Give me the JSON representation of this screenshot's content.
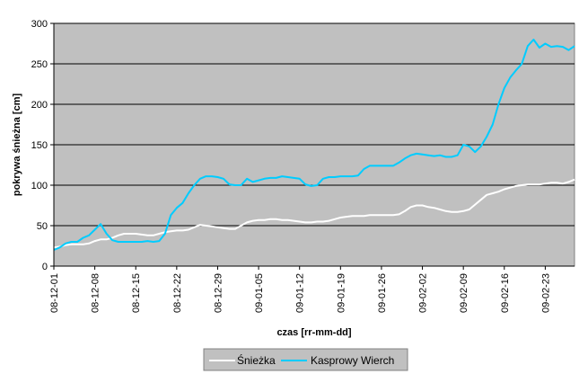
{
  "chart_data": {
    "type": "line",
    "title": "",
    "xlabel": "czas [rr-mm-dd]",
    "ylabel": "pokrywa śnieżna [cm]",
    "ylim": [
      0,
      300
    ],
    "yticks": [
      0,
      50,
      100,
      150,
      200,
      250,
      300
    ],
    "xlim": [
      "08-12-01",
      "09-02-28"
    ],
    "xtick_labels": [
      "08-12-01",
      "08-12-08",
      "08-12-15",
      "08-12-22",
      "08-12-29",
      "09-01-05",
      "09-01-12",
      "09-01-19",
      "09-01-26",
      "09-02-02",
      "09-02-09",
      "09-02-16",
      "09-02-23"
    ],
    "grid": "horizontal",
    "legend_position": "bottom",
    "plot_background": "#c0c0c0",
    "series": [
      {
        "name": "Śnieżka",
        "color": "#ffffff",
        "points": [
          [
            "08-12-01",
            23
          ],
          [
            "08-12-02",
            24
          ],
          [
            "08-12-03",
            26
          ],
          [
            "08-12-04",
            27
          ],
          [
            "08-12-05",
            27
          ],
          [
            "08-12-06",
            27
          ],
          [
            "08-12-07",
            28
          ],
          [
            "08-12-08",
            31
          ],
          [
            "08-12-09",
            33
          ],
          [
            "08-12-10",
            33
          ],
          [
            "08-12-11",
            35
          ],
          [
            "08-12-12",
            38
          ],
          [
            "08-12-13",
            40
          ],
          [
            "08-12-14",
            40
          ],
          [
            "08-12-15",
            40
          ],
          [
            "08-12-16",
            39
          ],
          [
            "08-12-17",
            38
          ],
          [
            "08-12-18",
            38
          ],
          [
            "08-12-19",
            40
          ],
          [
            "08-12-20",
            42
          ],
          [
            "08-12-21",
            43
          ],
          [
            "08-12-22",
            44
          ],
          [
            "08-12-23",
            44
          ],
          [
            "08-12-24",
            45
          ],
          [
            "08-12-25",
            48
          ],
          [
            "08-12-26",
            51
          ],
          [
            "08-12-27",
            50
          ],
          [
            "08-12-28",
            49
          ],
          [
            "08-12-29",
            48
          ],
          [
            "08-12-30",
            47
          ],
          [
            "08-12-31",
            46
          ],
          [
            "09-01-01",
            46
          ],
          [
            "09-01-02",
            50
          ],
          [
            "09-01-03",
            54
          ],
          [
            "09-01-04",
            56
          ],
          [
            "09-01-05",
            57
          ],
          [
            "09-01-06",
            57
          ],
          [
            "09-01-07",
            58
          ],
          [
            "09-01-08",
            58
          ],
          [
            "09-01-09",
            57
          ],
          [
            "09-01-10",
            57
          ],
          [
            "09-01-11",
            56
          ],
          [
            "09-01-12",
            55
          ],
          [
            "09-01-13",
            54
          ],
          [
            "09-01-14",
            54
          ],
          [
            "09-01-15",
            55
          ],
          [
            "09-01-16",
            55
          ],
          [
            "09-01-17",
            56
          ],
          [
            "09-01-18",
            58
          ],
          [
            "09-01-19",
            60
          ],
          [
            "09-01-20",
            61
          ],
          [
            "09-01-21",
            62
          ],
          [
            "09-01-22",
            62
          ],
          [
            "09-01-23",
            62
          ],
          [
            "09-01-24",
            63
          ],
          [
            "09-01-25",
            63
          ],
          [
            "09-01-26",
            63
          ],
          [
            "09-01-27",
            63
          ],
          [
            "09-01-28",
            63
          ],
          [
            "09-01-29",
            64
          ],
          [
            "09-01-30",
            68
          ],
          [
            "09-01-31",
            73
          ],
          [
            "09-02-01",
            75
          ],
          [
            "09-02-02",
            75
          ],
          [
            "09-02-03",
            73
          ],
          [
            "09-02-04",
            72
          ],
          [
            "09-02-05",
            70
          ],
          [
            "09-02-06",
            68
          ],
          [
            "09-02-07",
            67
          ],
          [
            "09-02-08",
            67
          ],
          [
            "09-02-09",
            68
          ],
          [
            "09-02-10",
            70
          ],
          [
            "09-02-11",
            76
          ],
          [
            "09-02-12",
            82
          ],
          [
            "09-02-13",
            88
          ],
          [
            "09-02-14",
            90
          ],
          [
            "09-02-15",
            92
          ],
          [
            "09-02-16",
            95
          ],
          [
            "09-02-17",
            97
          ],
          [
            "09-02-18",
            99
          ],
          [
            "09-02-19",
            100
          ],
          [
            "09-02-20",
            101
          ],
          [
            "09-02-21",
            101
          ],
          [
            "09-02-22",
            101
          ],
          [
            "09-02-23",
            102
          ],
          [
            "09-02-24",
            103
          ],
          [
            "09-02-25",
            103
          ],
          [
            "09-02-26",
            102
          ],
          [
            "09-02-27",
            104
          ],
          [
            "09-02-28",
            107
          ]
        ]
      },
      {
        "name": "Kasprowy Wierch",
        "color": "#00ccff",
        "points": [
          [
            "08-12-01",
            20
          ],
          [
            "08-12-02",
            23
          ],
          [
            "08-12-03",
            28
          ],
          [
            "08-12-04",
            30
          ],
          [
            "08-12-05",
            30
          ],
          [
            "08-12-06",
            35
          ],
          [
            "08-12-07",
            38
          ],
          [
            "08-12-08",
            45
          ],
          [
            "08-12-09",
            52
          ],
          [
            "08-12-10",
            40
          ],
          [
            "08-12-11",
            32
          ],
          [
            "08-12-12",
            30
          ],
          [
            "08-12-13",
            30
          ],
          [
            "08-12-14",
            30
          ],
          [
            "08-12-15",
            30
          ],
          [
            "08-12-16",
            30
          ],
          [
            "08-12-17",
            31
          ],
          [
            "08-12-18",
            30
          ],
          [
            "08-12-19",
            31
          ],
          [
            "08-12-20",
            40
          ],
          [
            "08-12-21",
            63
          ],
          [
            "08-12-22",
            72
          ],
          [
            "08-12-23",
            78
          ],
          [
            "08-12-24",
            90
          ],
          [
            "08-12-25",
            100
          ],
          [
            "08-12-26",
            108
          ],
          [
            "08-12-27",
            111
          ],
          [
            "08-12-28",
            111
          ],
          [
            "08-12-29",
            110
          ],
          [
            "08-12-30",
            108
          ],
          [
            "08-12-31",
            101
          ],
          [
            "09-01-01",
            100
          ],
          [
            "09-01-02",
            100
          ],
          [
            "09-01-03",
            108
          ],
          [
            "09-01-04",
            104
          ],
          [
            "09-01-05",
            106
          ],
          [
            "09-01-06",
            108
          ],
          [
            "09-01-07",
            109
          ],
          [
            "09-01-08",
            109
          ],
          [
            "09-01-09",
            111
          ],
          [
            "09-01-10",
            110
          ],
          [
            "09-01-11",
            109
          ],
          [
            "09-01-12",
            108
          ],
          [
            "09-01-13",
            101
          ],
          [
            "09-01-14",
            99
          ],
          [
            "09-01-15",
            100
          ],
          [
            "09-01-16",
            108
          ],
          [
            "09-01-17",
            110
          ],
          [
            "09-01-18",
            110
          ],
          [
            "09-01-19",
            111
          ],
          [
            "09-01-20",
            111
          ],
          [
            "09-01-21",
            111
          ],
          [
            "09-01-22",
            112
          ],
          [
            "09-01-23",
            120
          ],
          [
            "09-01-24",
            124
          ],
          [
            "09-01-25",
            124
          ],
          [
            "09-01-26",
            124
          ],
          [
            "09-01-27",
            124
          ],
          [
            "09-01-28",
            124
          ],
          [
            "09-01-29",
            128
          ],
          [
            "09-01-30",
            133
          ],
          [
            "09-01-31",
            137
          ],
          [
            "09-02-01",
            139
          ],
          [
            "09-02-02",
            138
          ],
          [
            "09-02-03",
            137
          ],
          [
            "09-02-04",
            136
          ],
          [
            "09-02-05",
            137
          ],
          [
            "09-02-06",
            135
          ],
          [
            "09-02-07",
            135
          ],
          [
            "09-02-08",
            137
          ],
          [
            "09-02-09",
            150
          ],
          [
            "09-02-10",
            148
          ],
          [
            "09-02-11",
            141
          ],
          [
            "09-02-12",
            148
          ],
          [
            "09-02-13",
            160
          ],
          [
            "09-02-14",
            175
          ],
          [
            "09-02-15",
            200
          ],
          [
            "09-02-16",
            220
          ],
          [
            "09-02-17",
            233
          ],
          [
            "09-02-18",
            242
          ],
          [
            "09-02-19",
            250
          ],
          [
            "09-02-20",
            272
          ],
          [
            "09-02-21",
            280
          ],
          [
            "09-02-22",
            270
          ],
          [
            "09-02-23",
            275
          ],
          [
            "09-02-24",
            271
          ],
          [
            "09-02-25",
            272
          ],
          [
            "09-02-26",
            271
          ],
          [
            "09-02-27",
            267
          ],
          [
            "09-02-28",
            272
          ]
        ]
      }
    ]
  }
}
